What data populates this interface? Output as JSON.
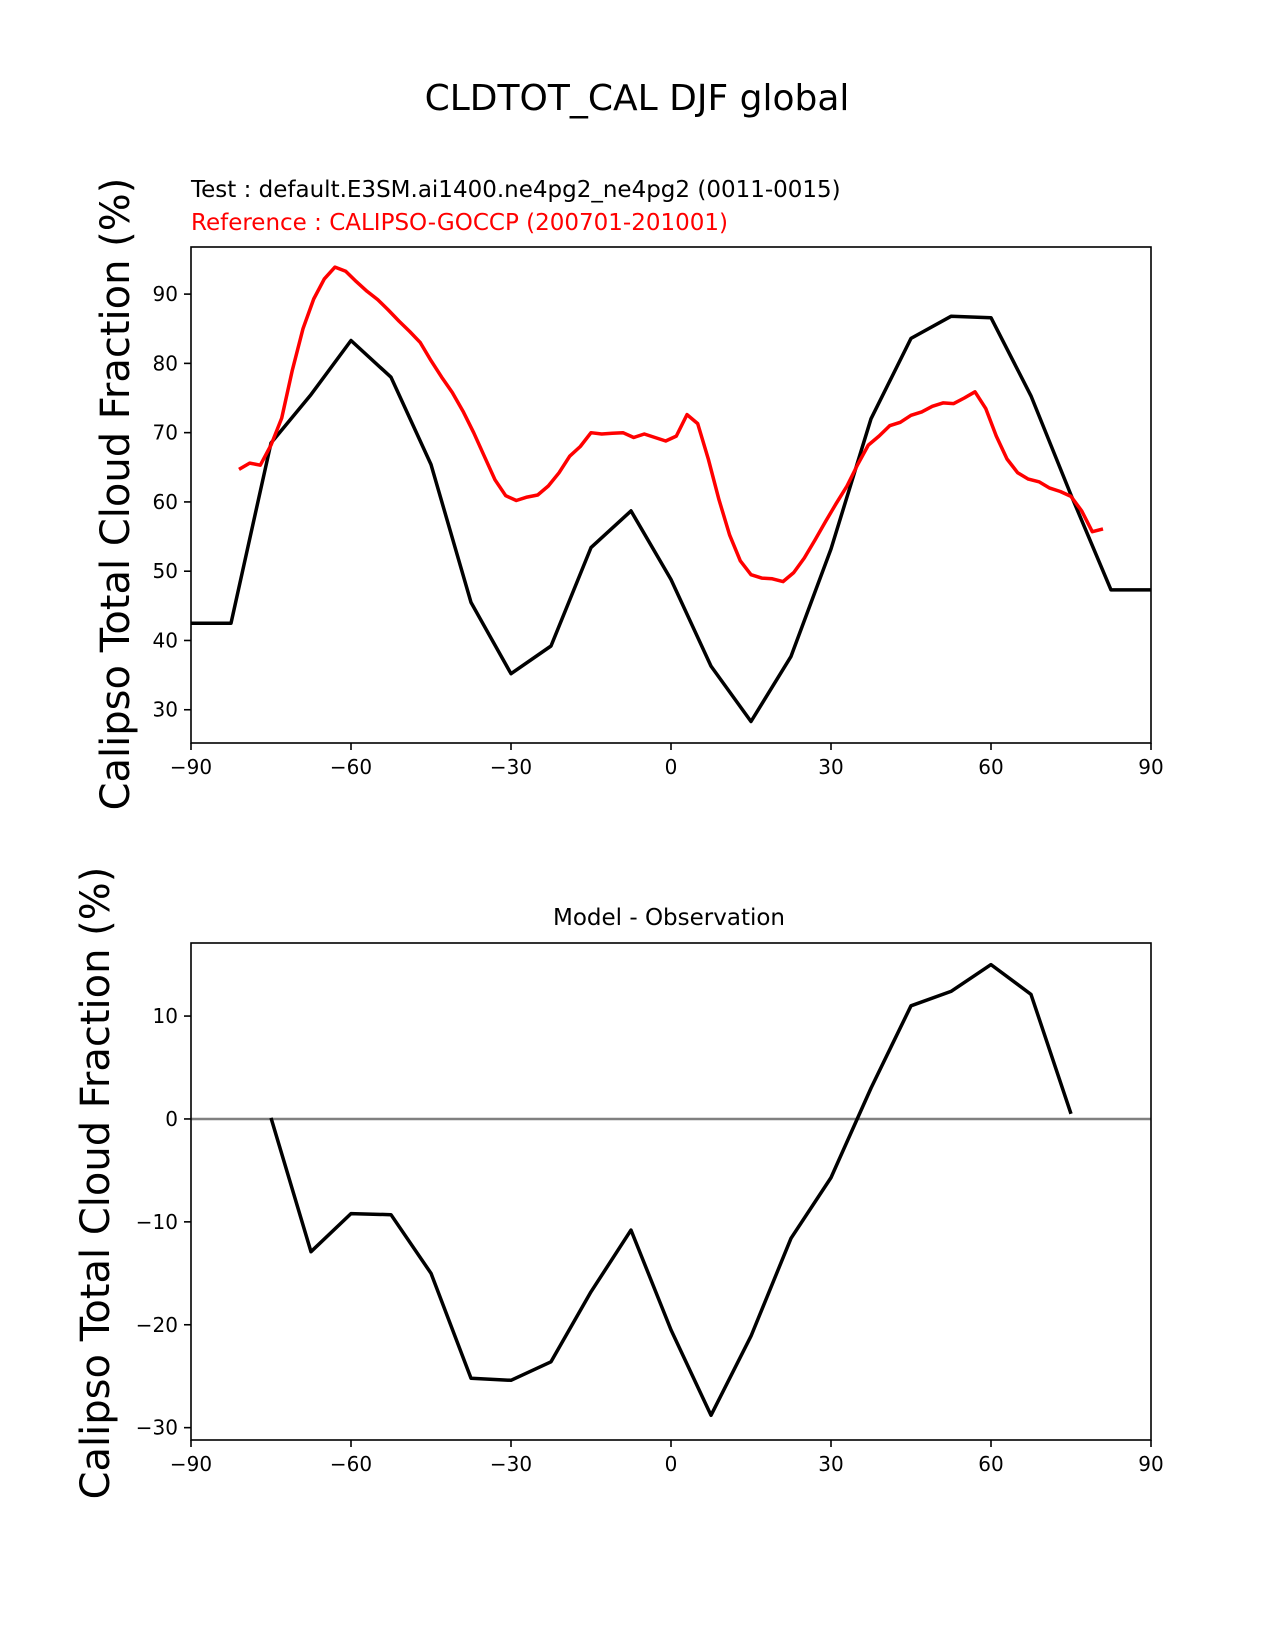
{
  "figure": {
    "title": "CLDTOT_CAL DJF global"
  },
  "chart_data": [
    {
      "type": "line",
      "title_test": "Test : default.E3SM.ai1400.ne4pg2_ne4pg2 (0011-0015)",
      "title_reference": "Reference : CALIPSO-GOCCP (200701-201001)",
      "xlabel": "",
      "ylabel": "Calipso Total Cloud Fraction (%)",
      "xlim": [
        -90,
        90
      ],
      "ylim": [
        25.2,
        96.8
      ],
      "xticks": [
        -90,
        -60,
        -30,
        0,
        30,
        60,
        90
      ],
      "xtick_labels": [
        "−90",
        "−60",
        "−30",
        "0",
        "30",
        "60",
        "90"
      ],
      "yticks": [
        30,
        40,
        50,
        60,
        70,
        80,
        90
      ],
      "ytick_labels": [
        "30",
        "40",
        "50",
        "60",
        "70",
        "80",
        "90"
      ],
      "grid": false,
      "series": [
        {
          "name": "Test",
          "color": "#000000",
          "x": [
            -90,
            -82.5,
            -75,
            -67.5,
            -60,
            -52.5,
            -45,
            -37.5,
            -30,
            -22.5,
            -15,
            -7.5,
            0,
            7.5,
            15,
            22.5,
            30,
            37.5,
            45,
            52.5,
            60,
            67.5,
            75,
            82.5,
            90
          ],
          "y": [
            42.5,
            42.5,
            68.5,
            75.5,
            83.3,
            78.0,
            65.4,
            45.5,
            35.2,
            39.2,
            53.4,
            58.7,
            48.8,
            36.3,
            28.3,
            37.7,
            53.2,
            72.0,
            83.6,
            86.8,
            86.6,
            75.3,
            61.0,
            47.3,
            47.3
          ]
        },
        {
          "name": "Reference",
          "color": "#ff0000",
          "x": [
            -81,
            -79,
            -77,
            -75,
            -73,
            -71,
            -69,
            -67,
            -65,
            -63,
            -61,
            -59,
            -57,
            -55,
            -53,
            -51,
            -49,
            -47,
            -45,
            -43,
            -41,
            -39,
            -37,
            -35,
            -33,
            -31,
            -29,
            -27,
            -25,
            -23,
            -21,
            -19,
            -17,
            -15,
            -13,
            -11,
            -9,
            -7,
            -5,
            -3,
            -1,
            1,
            3,
            5,
            7,
            9,
            11,
            13,
            15,
            17,
            19,
            21,
            23,
            25,
            27,
            29,
            31,
            33,
            35,
            37,
            39,
            41,
            43,
            45,
            47,
            49,
            51,
            53,
            55,
            57,
            59,
            61,
            63,
            65,
            67,
            69,
            71,
            73,
            75,
            77,
            79,
            81
          ],
          "y": [
            64.7,
            65.6,
            65.3,
            68.2,
            72.1,
            79.0,
            85.0,
            89.3,
            92.2,
            93.9,
            93.3,
            91.8,
            90.4,
            89.2,
            87.7,
            86.1,
            84.6,
            83.0,
            80.4,
            78.0,
            75.8,
            73.1,
            70.0,
            66.6,
            63.2,
            60.9,
            60.2,
            60.7,
            61.0,
            62.3,
            64.2,
            66.6,
            68.0,
            70.0,
            69.8,
            69.9,
            70.0,
            69.3,
            69.8,
            69.3,
            68.8,
            69.5,
            72.6,
            71.3,
            66.2,
            60.3,
            55.2,
            51.5,
            49.5,
            49.0,
            48.9,
            48.5,
            49.8,
            51.9,
            54.5,
            57.2,
            59.8,
            62.3,
            65.4,
            68.2,
            69.5,
            71.0,
            71.5,
            72.5,
            73.0,
            73.8,
            74.3,
            74.2,
            75.0,
            75.9,
            73.5,
            69.5,
            66.2,
            64.2,
            63.3,
            62.9,
            62.0,
            61.5,
            60.8,
            58.7,
            55.7,
            56.1
          ]
        }
      ]
    },
    {
      "type": "line",
      "title": "Model - Observation",
      "xlabel": "",
      "ylabel": "Calipso Total Cloud Fraction (%)",
      "xlim": [
        -90,
        90
      ],
      "ylim": [
        -31.2,
        17.1
      ],
      "xticks": [
        -90,
        -60,
        -30,
        0,
        30,
        60,
        90
      ],
      "xtick_labels": [
        "−90",
        "−60",
        "−30",
        "0",
        "30",
        "60",
        "90"
      ],
      "yticks": [
        -30,
        -20,
        -10,
        0,
        10
      ],
      "ytick_labels": [
        "−30",
        "−20",
        "−10",
        "0",
        "10"
      ],
      "grid": false,
      "zero_line": true,
      "series": [
        {
          "name": "Model - Observation",
          "color": "#000000",
          "x": [
            -75,
            -67.5,
            -60,
            -52.5,
            -45,
            -37.5,
            -30,
            -22.5,
            -15,
            -7.5,
            0,
            7.5,
            15,
            22.5,
            30,
            37.5,
            45,
            52.5,
            60,
            67.5,
            75
          ],
          "y": [
            0.1,
            -12.9,
            -9.2,
            -9.3,
            -15.0,
            -25.2,
            -25.4,
            -23.6,
            -16.8,
            -10.8,
            -20.5,
            -28.8,
            -21.1,
            -11.6,
            -5.7,
            3.0,
            11.0,
            12.4,
            15.0,
            12.1,
            0.5
          ]
        }
      ]
    }
  ]
}
